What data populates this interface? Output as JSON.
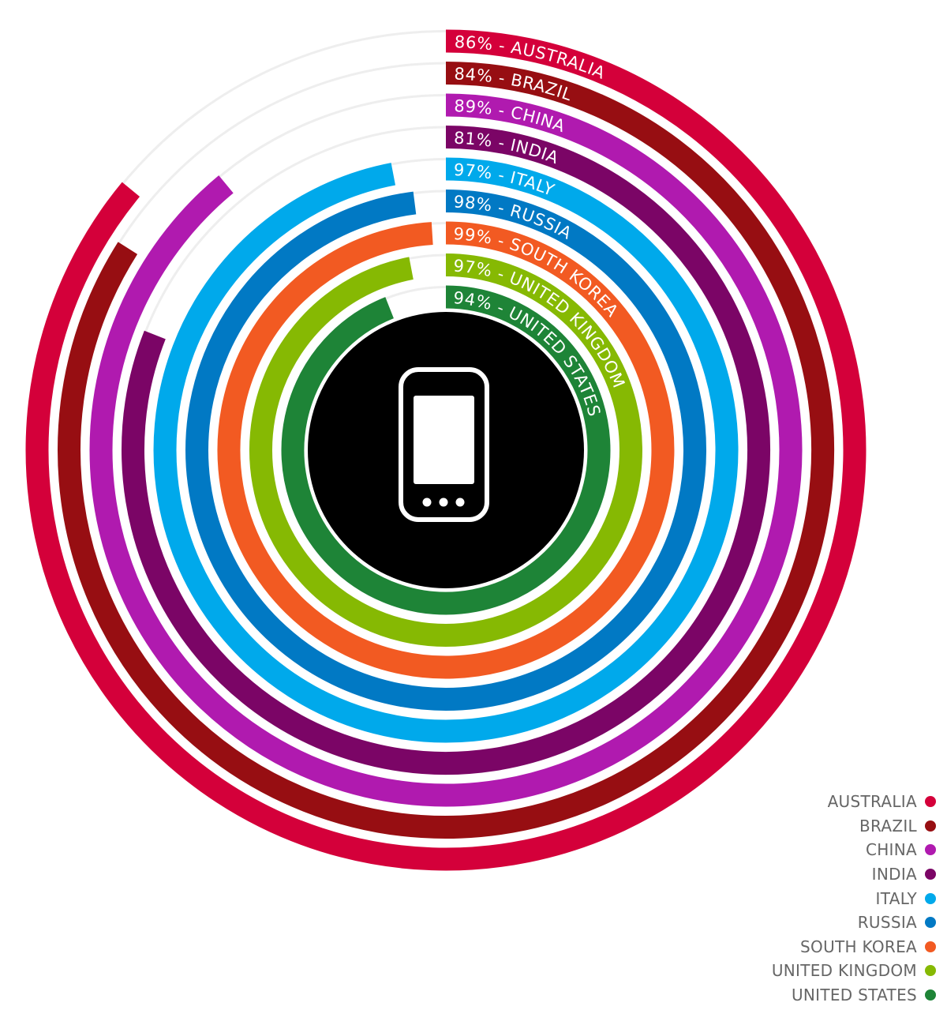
{
  "chart_data": {
    "type": "radial-bar",
    "series": [
      {
        "name": "AUSTRALIA",
        "value": 86,
        "label": "86% - AUSTRALIA",
        "color": "#d4003a"
      },
      {
        "name": "BRAZIL",
        "value": 84,
        "label": "84% - BRAZIL",
        "color": "#970e12"
      },
      {
        "name": "CHINA",
        "value": 89,
        "label": "89% - CHINA",
        "color": "#b01aaf"
      },
      {
        "name": "INDIA",
        "value": 81,
        "label": "81% - INDIA",
        "color": "#7b0566"
      },
      {
        "name": "ITALY",
        "value": 97,
        "label": "97% - ITALY",
        "color": "#00a9eb"
      },
      {
        "name": "RUSSIA",
        "value": 98,
        "label": "98% - RUSSIA",
        "color": "#0179c4"
      },
      {
        "name": "SOUTH KOREA",
        "value": 99,
        "label": "99% - SOUTH KOREA",
        "color": "#f25a22"
      },
      {
        "name": "UNITED KINGDOM",
        "value": 97,
        "label": "97% - UNITED KINGDOM",
        "color": "#86b903"
      },
      {
        "name": "UNITED STATES",
        "value": 94,
        "label": "94% - UNITED STATES",
        "color": "#1e8437"
      }
    ],
    "max": 100,
    "track_color": "#eeeeee",
    "center_icon": "mobile-phone-icon",
    "legend_position": "bottom-right"
  }
}
